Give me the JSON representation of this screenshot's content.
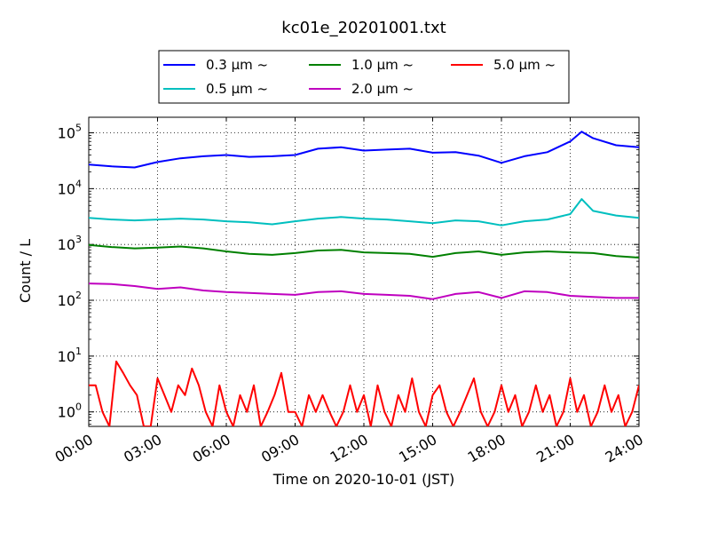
{
  "chart_data": {
    "type": "line",
    "title": "kc01e_20201001.txt",
    "xlabel": "Time on 2020-10-01 (JST)",
    "ylabel": "Count / L",
    "x_ticks": [
      "00:00",
      "03:00",
      "06:00",
      "09:00",
      "12:00",
      "15:00",
      "18:00",
      "21:00",
      "24:00"
    ],
    "xlim": [
      0,
      24
    ],
    "ylim": [
      0.55,
      190000
    ],
    "y_scale": "log",
    "y_ticks": [
      {
        "value": 1,
        "mantissa": "10",
        "exp": "0"
      },
      {
        "value": 10,
        "mantissa": "10",
        "exp": "1"
      },
      {
        "value": 100,
        "mantissa": "10",
        "exp": "2"
      },
      {
        "value": 1000,
        "mantissa": "10",
        "exp": "3"
      },
      {
        "value": 10000,
        "mantissa": "10",
        "exp": "4"
      },
      {
        "value": 100000,
        "mantissa": "10",
        "exp": "5"
      }
    ],
    "grid": true,
    "legend_position": "top",
    "series": [
      {
        "name": "0.3 μm ~",
        "color": "#0000ff",
        "x": [
          0,
          1,
          2,
          3,
          4,
          5,
          6,
          7,
          8,
          9,
          10,
          11,
          12,
          13,
          14,
          15,
          16,
          17,
          18,
          19,
          20,
          21,
          21.5,
          22,
          23,
          24
        ],
        "y": [
          27000,
          25000,
          24000,
          30000,
          35000,
          38000,
          40000,
          37000,
          38000,
          40000,
          52000,
          55000,
          48000,
          50000,
          52000,
          44000,
          45000,
          39000,
          29000,
          38000,
          45000,
          70000,
          105000,
          80000,
          60000,
          55000
        ]
      },
      {
        "name": "0.5 μm ~",
        "color": "#00bfbf",
        "x": [
          0,
          1,
          2,
          3,
          4,
          5,
          6,
          7,
          8,
          9,
          10,
          11,
          12,
          13,
          14,
          15,
          16,
          17,
          18,
          19,
          20,
          21,
          21.5,
          22,
          23,
          24
        ],
        "y": [
          3000,
          2800,
          2700,
          2800,
          2900,
          2800,
          2600,
          2500,
          2300,
          2600,
          2900,
          3100,
          2900,
          2800,
          2600,
          2400,
          2700,
          2600,
          2200,
          2600,
          2800,
          3500,
          6500,
          4000,
          3300,
          3000
        ]
      },
      {
        "name": "1.0 μm ~",
        "color": "#008000",
        "x": [
          0,
          1,
          2,
          3,
          4,
          5,
          6,
          7,
          8,
          9,
          10,
          11,
          12,
          13,
          14,
          15,
          16,
          17,
          18,
          19,
          20,
          21,
          22,
          23,
          24
        ],
        "y": [
          980,
          900,
          850,
          880,
          920,
          850,
          750,
          680,
          650,
          700,
          780,
          800,
          720,
          700,
          680,
          600,
          700,
          750,
          650,
          720,
          750,
          720,
          700,
          620,
          580
        ]
      },
      {
        "name": "2.0 μm ~",
        "color": "#bf00bf",
        "x": [
          0,
          1,
          2,
          3,
          4,
          5,
          6,
          7,
          8,
          9,
          10,
          11,
          12,
          13,
          14,
          15,
          16,
          17,
          18,
          19,
          20,
          21,
          22,
          23,
          24
        ],
        "y": [
          200,
          195,
          180,
          160,
          170,
          150,
          140,
          135,
          130,
          125,
          140,
          145,
          130,
          125,
          120,
          105,
          130,
          140,
          110,
          145,
          140,
          120,
          115,
          110,
          110
        ]
      },
      {
        "name": "5.0 μm ~",
        "color": "#ff0000",
        "x": [
          0,
          0.3,
          0.6,
          0.9,
          1.2,
          1.5,
          1.8,
          2.1,
          2.4,
          2.7,
          3.0,
          3.3,
          3.6,
          3.9,
          4.2,
          4.5,
          4.8,
          5.1,
          5.4,
          5.7,
          6.0,
          6.3,
          6.6,
          6.9,
          7.2,
          7.5,
          7.8,
          8.1,
          8.4,
          8.7,
          9.0,
          9.3,
          9.6,
          9.9,
          10.2,
          10.5,
          10.8,
          11.1,
          11.4,
          11.7,
          12.0,
          12.3,
          12.6,
          12.9,
          13.2,
          13.5,
          13.8,
          14.1,
          14.4,
          14.7,
          15.0,
          15.3,
          15.6,
          15.9,
          16.2,
          16.5,
          16.8,
          17.1,
          17.4,
          17.7,
          18.0,
          18.3,
          18.6,
          18.9,
          19.2,
          19.5,
          19.8,
          20.1,
          20.4,
          20.7,
          21.0,
          21.3,
          21.6,
          21.9,
          22.2,
          22.5,
          22.8,
          23.1,
          23.4,
          23.7,
          24.0
        ],
        "y": [
          3,
          3,
          1,
          0.5,
          8,
          5,
          3,
          2,
          0.5,
          0.5,
          4,
          2,
          1,
          3,
          2,
          6,
          3,
          1,
          0.5,
          3,
          1,
          0.5,
          2,
          1,
          3,
          0.5,
          1,
          2,
          5,
          1,
          1,
          0.5,
          2,
          1,
          2,
          1,
          0.5,
          1,
          3,
          1,
          2,
          0.5,
          3,
          1,
          0.5,
          2,
          1,
          4,
          1,
          0.5,
          2,
          3,
          1,
          0.5,
          1,
          2,
          4,
          1,
          0.5,
          1,
          3,
          1,
          2,
          0.5,
          1,
          3,
          1,
          2,
          0.5,
          1,
          4,
          1,
          2,
          0.5,
          1,
          3,
          1,
          2,
          0.5,
          1,
          3
        ]
      }
    ]
  }
}
